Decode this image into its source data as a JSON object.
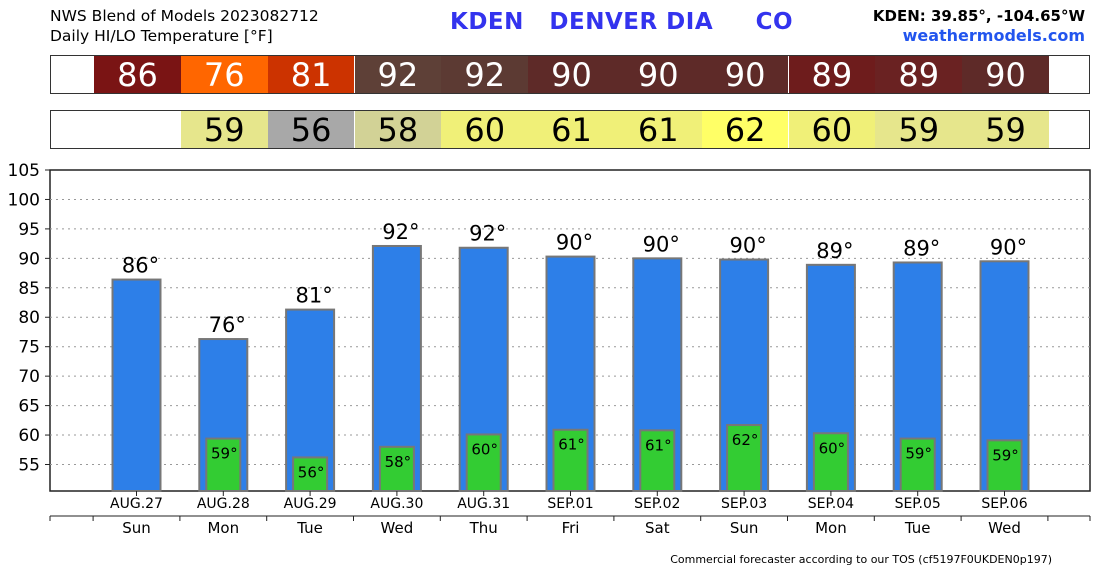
{
  "header": {
    "line1": "NWS Blend of Models 2023082712",
    "line2": "Daily HI/LO Temperature [°F]",
    "station": "KDEN   DENVER DIA     CO",
    "coords": "KDEN: 39.85°, -104.65°W",
    "site": "weathermodels.com"
  },
  "footer": "Commercial forecaster according to our TOS (cf5197F0UKDEN0p197)",
  "colors": {
    "hi_bar": "#2d7fe8",
    "lo_bar": "#33cc33",
    "bar_border": "#777777",
    "hi_strip": [
      "#7a1414",
      "#ff6600",
      "#cc3300",
      "#5e4037",
      "#5c3a33",
      "#5e2a28",
      "#5e2a28",
      "#5e2a28",
      "#6e1c1c",
      "#6a2222",
      "#5e2a28"
    ],
    "lo_strip": [
      "#ffffff",
      "#e6e68c",
      "#a8a8a8",
      "#d2d296",
      "#f0f078",
      "#f0f078",
      "#f0f078",
      "#ffff66",
      "#f0f078",
      "#e6e68c",
      "#e6e68c"
    ]
  },
  "chart_data": {
    "type": "bar",
    "categories": [
      "AUG.27",
      "AUG.28",
      "AUG.29",
      "AUG.30",
      "AUG.31",
      "SEP.01",
      "SEP.02",
      "SEP.03",
      "SEP.04",
      "SEP.05",
      "SEP.06"
    ],
    "weekdays": [
      "Sun",
      "Mon",
      "Tue",
      "Wed",
      "Thu",
      "Fri",
      "Sat",
      "Sun",
      "Mon",
      "Tue",
      "Wed"
    ],
    "series": [
      {
        "name": "HI",
        "values": [
          86.4,
          76.3,
          81.3,
          92.1,
          91.8,
          90.3,
          90.0,
          89.8,
          88.9,
          89.3,
          89.5
        ],
        "labels": [
          "86°",
          "76°",
          "81°",
          "92°",
          "92°",
          "90°",
          "90°",
          "90°",
          "89°",
          "89°",
          "90°"
        ]
      },
      {
        "name": "LO",
        "values": [
          null,
          59.4,
          56.2,
          58.0,
          60.1,
          60.9,
          60.8,
          61.7,
          60.3,
          59.4,
          59.1
        ],
        "labels": [
          "",
          "59°",
          "56°",
          "58°",
          "60°",
          "61°",
          "61°",
          "62°",
          "60°",
          "59°",
          "59°"
        ]
      }
    ],
    "hi_strip_values": [
      "86",
      "76",
      "81",
      "92",
      "92",
      "90",
      "90",
      "90",
      "89",
      "89",
      "90"
    ],
    "lo_strip_values": [
      "",
      "59",
      "56",
      "58",
      "60",
      "61",
      "61",
      "62",
      "60",
      "59",
      "59"
    ],
    "ylim": [
      50.5,
      105
    ],
    "yticks": [
      55,
      60,
      65,
      70,
      75,
      80,
      85,
      90,
      95,
      100,
      105
    ],
    "grid": true,
    "xlabel": "",
    "ylabel": ""
  }
}
